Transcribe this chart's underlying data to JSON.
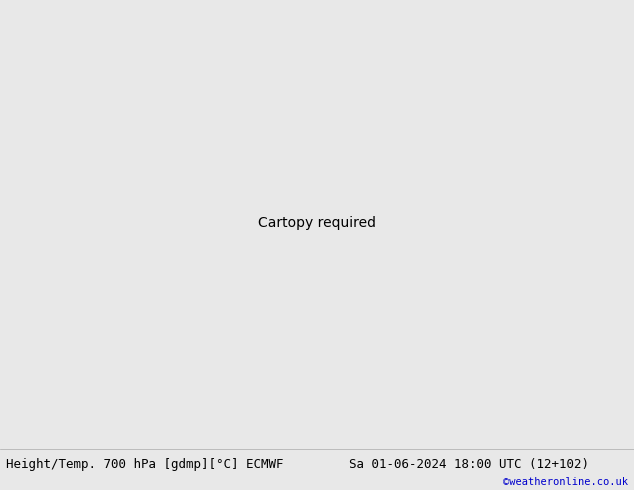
{
  "title_left": "Height/Temp. 700 hPa [gdmp][°C] ECMWF",
  "title_right": "Sa 01-06-2024 18:00 UTC (12+102)",
  "copyright": "©weatheronline.co.uk",
  "fig_width": 6.34,
  "fig_height": 4.9,
  "dpi": 100,
  "land_color": "#c8e8a0",
  "land_detail_color": "#b0d888",
  "sea_color": "#d0d0d0",
  "border_color": "#888888",
  "coast_color": "#888888",
  "bottom_bar_color": "#e8e8e8",
  "title_fontsize": 9.0,
  "copyright_fontsize": 7.5,
  "copyright_color": "#0000cc",
  "geo_color": "#000000",
  "temp_neg_color": "#cc0000",
  "temp_pos_color": "#cc6600",
  "temp_zero_color": "#cc00cc",
  "lon_min": -22,
  "lon_max": 40,
  "lat_min": 26,
  "lat_max": 76
}
